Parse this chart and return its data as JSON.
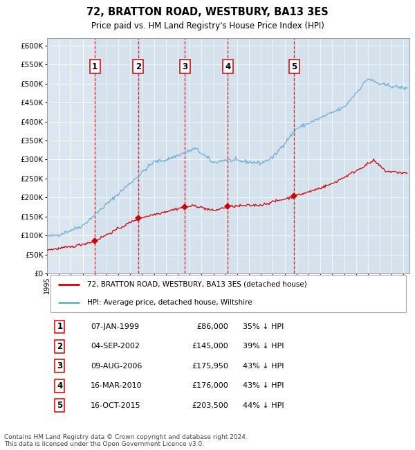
{
  "title": "72, BRATTON ROAD, WESTBURY, BA13 3ES",
  "subtitle": "Price paid vs. HM Land Registry's House Price Index (HPI)",
  "background_color": "#dce6f0",
  "plot_background": "#dce6f0",
  "grid_color": "#ffffff",
  "hpi_color": "#6baed6",
  "price_color": "#cc0000",
  "transactions": [
    {
      "num": 1,
      "date": "07-JAN-1999",
      "price": 86000,
      "pct": "35% ↓ HPI",
      "x_year": 1999.03
    },
    {
      "num": 2,
      "date": "04-SEP-2002",
      "price": 145000,
      "pct": "39% ↓ HPI",
      "x_year": 2002.67
    },
    {
      "num": 3,
      "date": "09-AUG-2006",
      "price": 175950,
      "pct": "43% ↓ HPI",
      "x_year": 2006.61
    },
    {
      "num": 4,
      "date": "16-MAR-2010",
      "price": 176000,
      "pct": "43% ↓ HPI",
      "x_year": 2010.21
    },
    {
      "num": 5,
      "date": "16-OCT-2015",
      "price": 203500,
      "pct": "44% ↓ HPI",
      "x_year": 2015.79
    }
  ],
  "legend_label_price": "72, BRATTON ROAD, WESTBURY, BA13 3ES (detached house)",
  "legend_label_hpi": "HPI: Average price, detached house, Wiltshire",
  "footer": "Contains HM Land Registry data © Crown copyright and database right 2024.\nThis data is licensed under the Open Government Licence v3.0.",
  "ylim": [
    0,
    620000
  ],
  "xlim_start": 1995.0,
  "xlim_end": 2025.5
}
